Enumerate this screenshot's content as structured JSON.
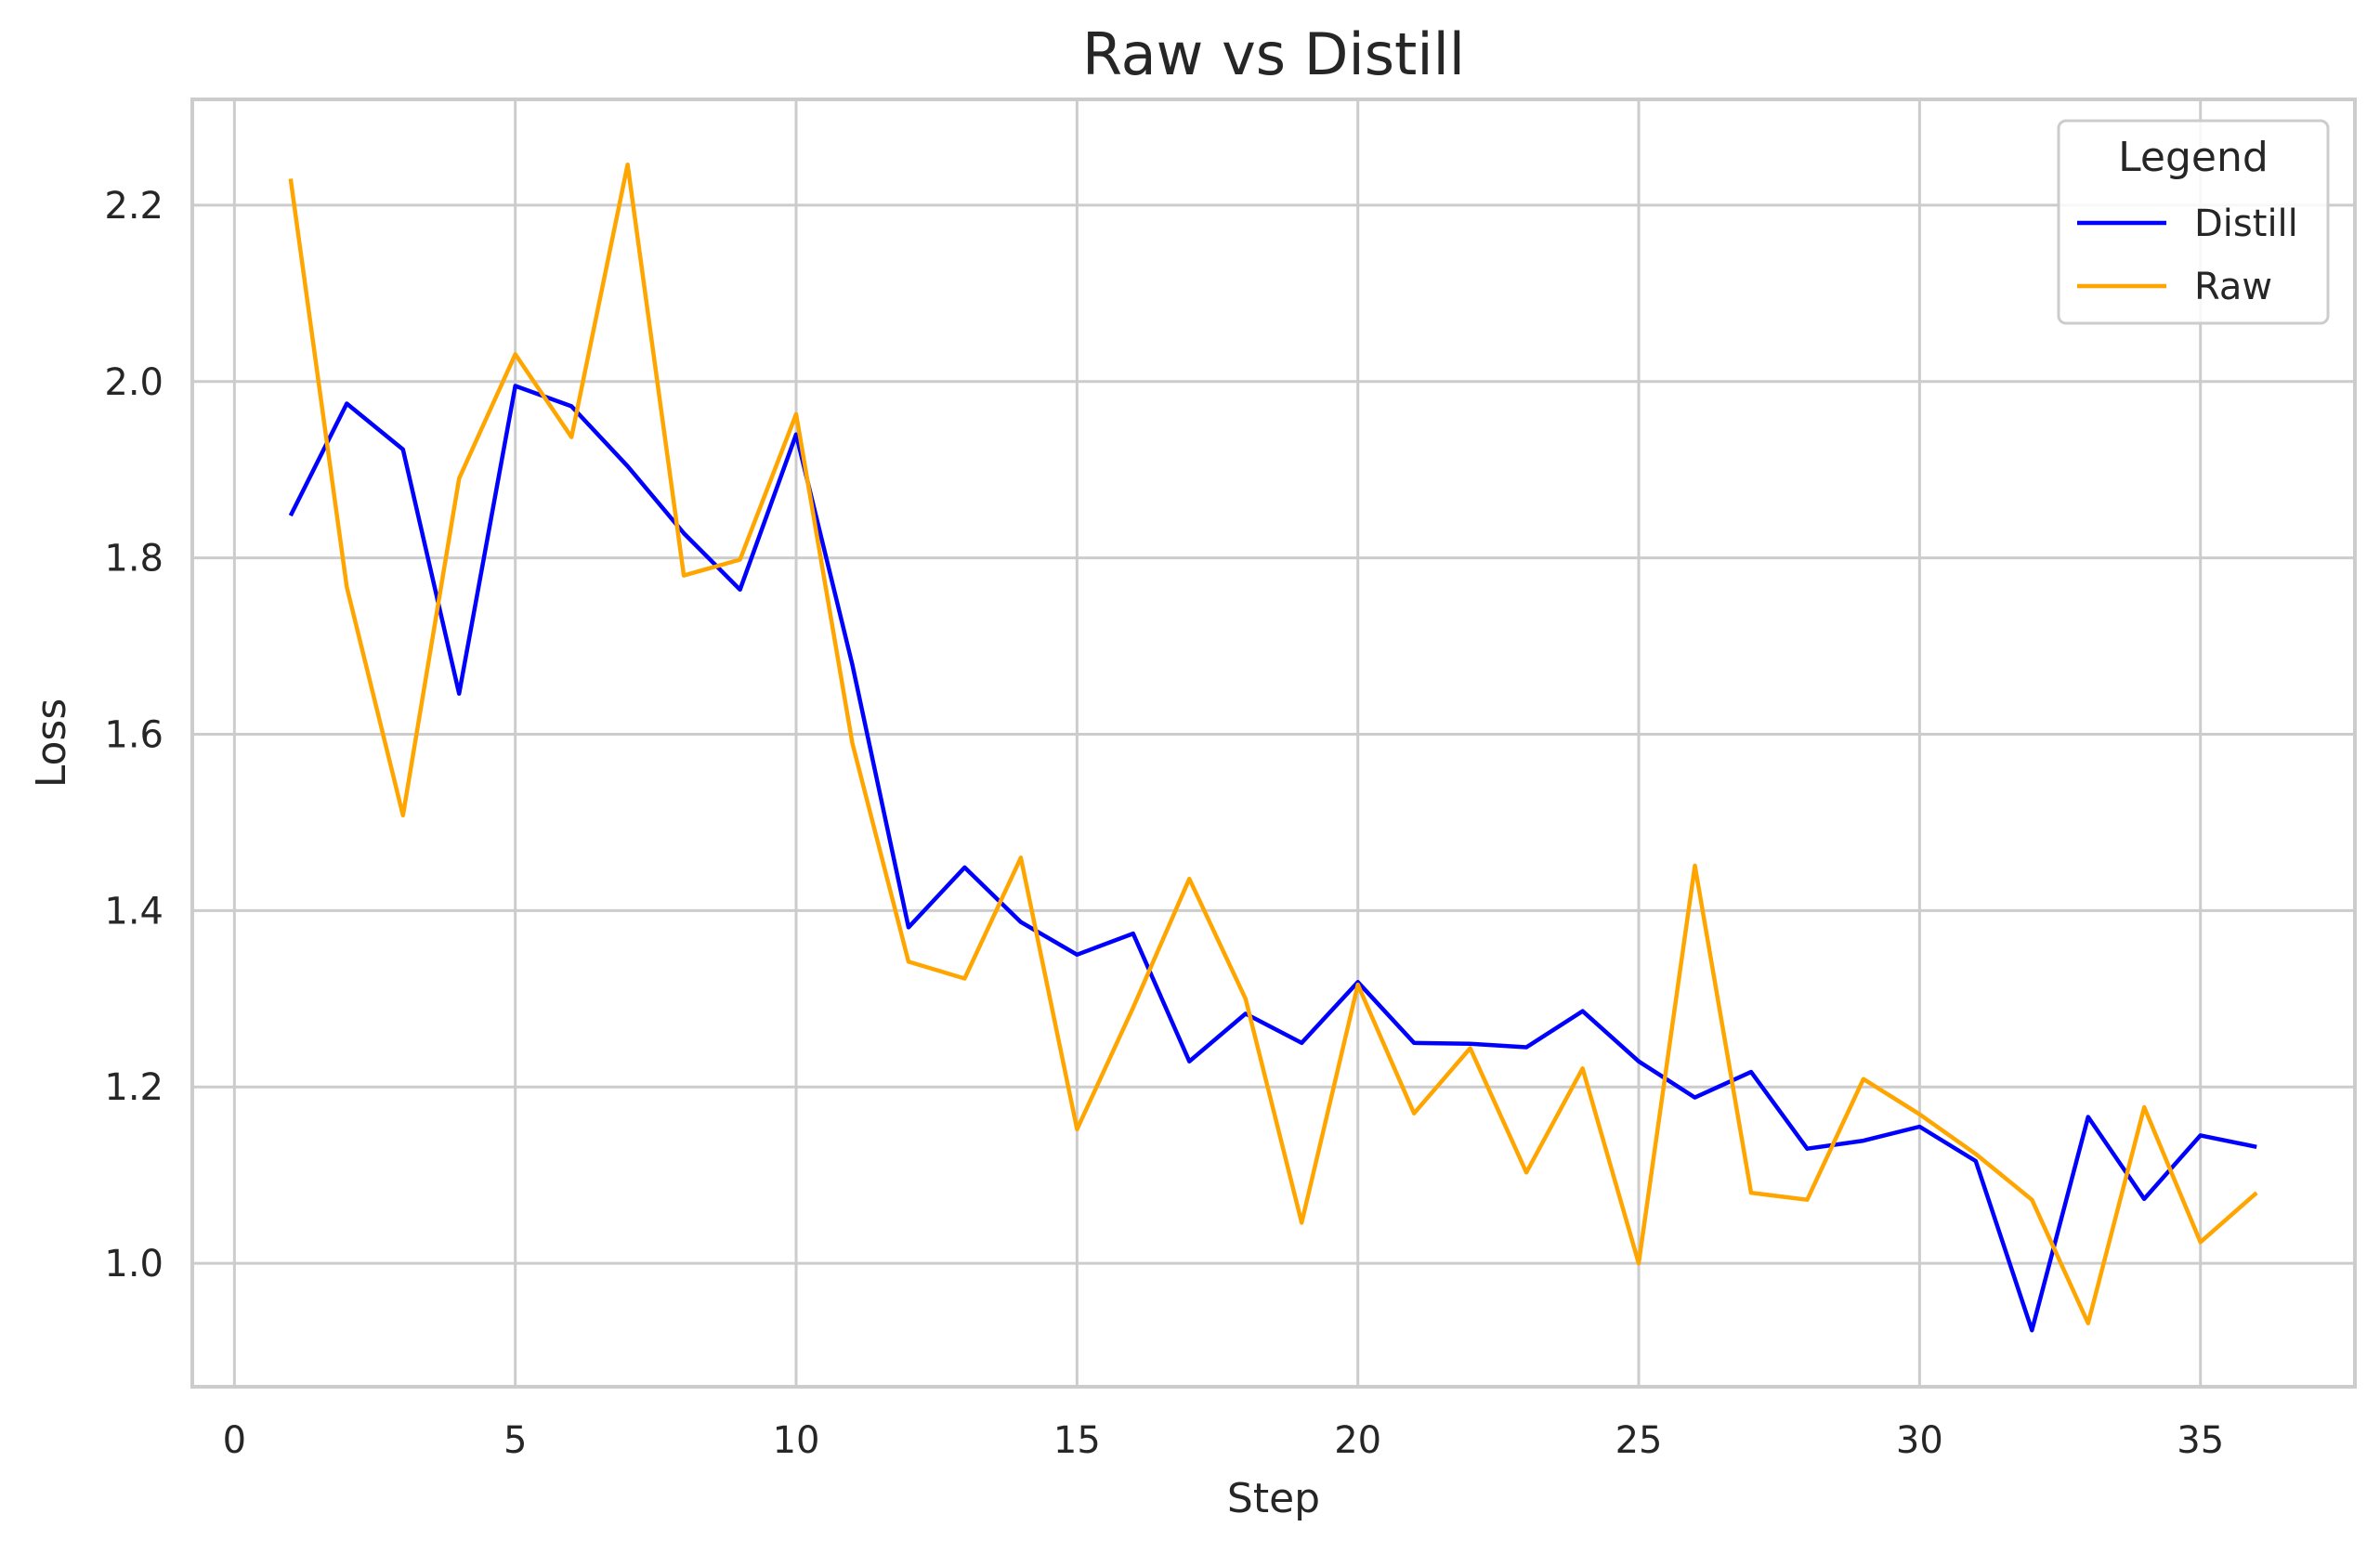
{
  "chart_data": {
    "type": "line",
    "title": "Raw vs Distill",
    "xlabel": "Step",
    "ylabel": "Loss",
    "xlim": [
      -0.75,
      37.75
    ],
    "ylim": [
      0.86,
      2.32
    ],
    "xticks": [
      0,
      5,
      10,
      15,
      20,
      25,
      30,
      35
    ],
    "yticks": [
      1.0,
      1.2,
      1.4,
      1.6,
      1.8,
      2.0,
      2.2
    ],
    "ytick_labels": [
      "1.0",
      "1.2",
      "1.4",
      "1.6",
      "1.8",
      "2.0",
      "2.2"
    ],
    "grid": true,
    "legend": {
      "title": "Legend",
      "position": "top-right"
    },
    "x": [
      1,
      2,
      3,
      4,
      5,
      6,
      7,
      8,
      9,
      10,
      11,
      12,
      13,
      14,
      15,
      16,
      17,
      18,
      19,
      20,
      21,
      22,
      23,
      24,
      25,
      26,
      27,
      28,
      29,
      30,
      31,
      32,
      33,
      34,
      35,
      36
    ],
    "series": [
      {
        "name": "Distill",
        "color": "#0000ff",
        "values": [
          1.848,
          1.975,
          1.923,
          1.646,
          1.995,
          1.972,
          1.904,
          1.828,
          1.764,
          1.94,
          1.679,
          1.381,
          1.449,
          1.387,
          1.35,
          1.374,
          1.229,
          1.283,
          1.25,
          1.319,
          1.25,
          1.249,
          1.245,
          1.286,
          1.229,
          1.188,
          1.217,
          1.13,
          1.139,
          1.155,
          1.116,
          0.924,
          1.166,
          1.073,
          1.145,
          1.132
        ]
      },
      {
        "name": "Raw",
        "color": "#ffa500",
        "values": [
          2.23,
          1.767,
          1.508,
          1.89,
          2.031,
          1.937,
          2.246,
          1.78,
          1.798,
          1.963,
          1.59,
          1.342,
          1.323,
          1.46,
          1.152,
          1.29,
          1.436,
          1.3,
          1.046,
          1.316,
          1.17,
          1.244,
          1.103,
          1.221,
          1.0,
          1.451,
          1.08,
          1.072,
          1.209,
          1.169,
          1.124,
          1.072,
          0.932,
          1.177,
          1.024,
          1.08
        ]
      }
    ]
  }
}
